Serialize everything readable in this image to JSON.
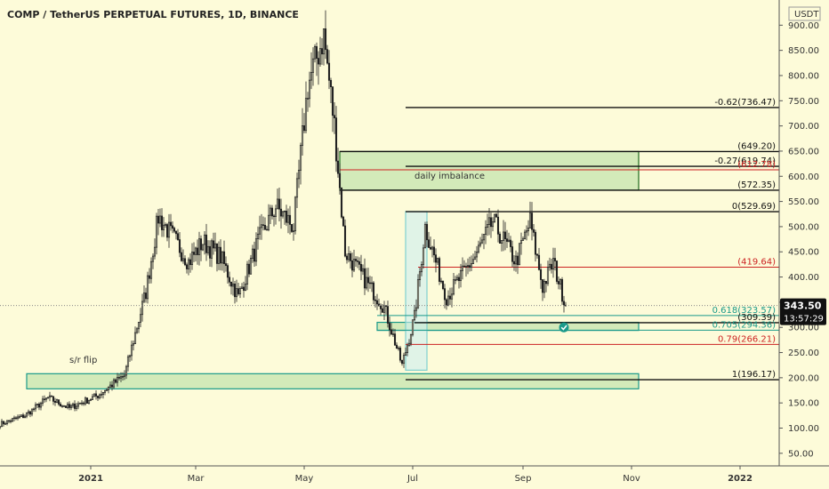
{
  "header": {
    "title": "COMP / TetherUS PERPETUAL FUTURES, 1D, BINANCE",
    "currency_badge": "USDT"
  },
  "colors": {
    "background": "#fdfbd9",
    "up": "#222222",
    "down": "#222222",
    "zone_fill": "#c8e6b0",
    "zone_border_green": "#1f6b1f",
    "zone_border_teal": "#1a9a8a",
    "fib_black": "#111111",
    "fib_red": "#cc2222",
    "fib_teal": "#1a9a8a",
    "price_label_bg": "#111111"
  },
  "chart_data": {
    "type": "candlestick",
    "title": "COMP / TetherUS PERPETUAL FUTURES, 1D, BINANCE",
    "xlabel": "",
    "ylabel": "",
    "ylim": [
      25,
      950
    ],
    "y_ticks": [
      50,
      100,
      150,
      200,
      250,
      300,
      350,
      400,
      450,
      500,
      550,
      600,
      650,
      700,
      750,
      800,
      850,
      900
    ],
    "y_tick_labels": [
      "50.00",
      "100.00",
      "150.00",
      "200.00",
      "250.00",
      "300.00",
      "350.00",
      "400.00",
      "450.00",
      "500.00",
      "550.00",
      "600.00",
      "650.00",
      "700.00",
      "750.00",
      "800.00",
      "850.00",
      "900.00"
    ],
    "x_tick_labels": [
      {
        "date": "2021-01-01",
        "label": "2021"
      },
      {
        "date": "2021-03-01",
        "label": "Mar"
      },
      {
        "date": "2021-05-01",
        "label": "May"
      },
      {
        "date": "2021-07-01",
        "label": "Jul"
      },
      {
        "date": "2021-09-01",
        "label": "Sep"
      },
      {
        "date": "2021-11-01",
        "label": "Nov"
      },
      {
        "date": "2022-01-01",
        "label": "2022"
      }
    ],
    "x_range": [
      "2020-11-11",
      "2022-01-23"
    ],
    "series_keypoints": [
      {
        "date": "2020-11-11",
        "close": 108
      },
      {
        "date": "2020-11-25",
        "close": 125
      },
      {
        "date": "2020-12-08",
        "close": 160
      },
      {
        "date": "2020-12-20",
        "close": 140
      },
      {
        "date": "2021-01-05",
        "close": 165
      },
      {
        "date": "2021-01-20",
        "close": 205
      },
      {
        "date": "2021-02-01",
        "close": 370
      },
      {
        "date": "2021-02-08",
        "close": 520
      },
      {
        "date": "2021-02-16",
        "close": 480
      },
      {
        "date": "2021-02-25",
        "close": 430
      },
      {
        "date": "2021-03-05",
        "close": 470
      },
      {
        "date": "2021-03-15",
        "close": 440
      },
      {
        "date": "2021-03-25",
        "close": 360
      },
      {
        "date": "2021-04-05",
        "close": 470
      },
      {
        "date": "2021-04-15",
        "close": 540
      },
      {
        "date": "2021-04-25",
        "close": 500
      },
      {
        "date": "2021-05-03",
        "close": 780
      },
      {
        "date": "2021-05-12",
        "close": 880
      },
      {
        "date": "2021-05-18",
        "close": 700
      },
      {
        "date": "2021-05-24",
        "close": 450
      },
      {
        "date": "2021-06-05",
        "close": 390
      },
      {
        "date": "2021-06-15",
        "close": 340
      },
      {
        "date": "2021-06-25",
        "close": 225
      },
      {
        "date": "2021-07-02",
        "close": 320
      },
      {
        "date": "2021-07-08",
        "close": 500
      },
      {
        "date": "2021-07-20",
        "close": 360
      },
      {
        "date": "2021-08-05",
        "close": 440
      },
      {
        "date": "2021-08-15",
        "close": 510
      },
      {
        "date": "2021-08-28",
        "close": 430
      },
      {
        "date": "2021-09-05",
        "close": 510
      },
      {
        "date": "2021-09-12",
        "close": 380
      },
      {
        "date": "2021-09-18",
        "close": 430
      },
      {
        "date": "2021-09-25",
        "close": 343.5
      }
    ],
    "last_price": {
      "value": 343.5,
      "label": "343.50",
      "countdown": "13:57:29"
    },
    "zones": [
      {
        "name": "daily-imbalance-zone",
        "start": "2021-05-21",
        "end": "2021-11-05",
        "low": 572.35,
        "high": 649.2,
        "border": "green"
      },
      {
        "name": "sr-flip-zone",
        "start": "2020-11-26",
        "end": "2021-11-05",
        "low": 178,
        "high": 208,
        "border": "teal"
      },
      {
        "name": "support-zone",
        "start": "2021-06-11",
        "end": "2021-11-05",
        "low": 294,
        "high": 310,
        "border": "teal"
      },
      {
        "name": "impulse-zone",
        "start": "2021-06-27",
        "end": "2021-07-09",
        "low": 215,
        "high": 530,
        "border": "teal-light"
      }
    ],
    "fib_levels": [
      {
        "name": "fib-736",
        "label": "-0.62(736.47)",
        "value": 736.47,
        "start": "2021-06-27",
        "color": "black"
      },
      {
        "name": "fib-649",
        "label": "(649.20)",
        "value": 649.2,
        "start": "2021-05-21",
        "color": "black"
      },
      {
        "name": "fib-619",
        "label": "-0.27(619.74)",
        "value": 619.74,
        "start": "2021-06-27",
        "color": "black"
      },
      {
        "name": "fib-612",
        "label": "(612.78)",
        "value": 612.78,
        "start": "2021-05-21",
        "color": "red"
      },
      {
        "name": "fib-572",
        "label": "(572.35)",
        "value": 572.35,
        "start": "2021-05-21",
        "color": "black"
      },
      {
        "name": "fib-529",
        "label": "0(529.69)",
        "value": 529.69,
        "start": "2021-06-27",
        "color": "black"
      },
      {
        "name": "fib-419",
        "label": "(419.64)",
        "value": 419.64,
        "start": "2021-07-04",
        "color": "red"
      },
      {
        "name": "fib-323",
        "label": "0.618(323.57)",
        "value": 323.57,
        "start": "2021-06-11",
        "color": "teal"
      },
      {
        "name": "fib-309",
        "label": "(309.39)",
        "value": 309.39,
        "start": "2021-07-02",
        "color": "black"
      },
      {
        "name": "fib-294",
        "label": "0.705(294.36)",
        "value": 294.36,
        "start": "2021-06-11",
        "color": "teal"
      },
      {
        "name": "fib-266",
        "label": "0.79(266.21)",
        "value": 266.21,
        "start": "2021-06-27",
        "color": "red"
      },
      {
        "name": "fib-196",
        "label": "1(196.17)",
        "value": 196.17,
        "start": "2021-06-27",
        "color": "black"
      }
    ],
    "annotations": [
      {
        "name": "sr-flip-label",
        "text": "s/r flip",
        "date": "2020-12-20",
        "value": 230
      },
      {
        "name": "daily-imbalance-label",
        "text": "daily imbalance",
        "date": "2021-07-02",
        "value": 595
      }
    ],
    "marker": {
      "date": "2021-09-24",
      "value": 300,
      "icon": "check-circle-icon"
    }
  }
}
